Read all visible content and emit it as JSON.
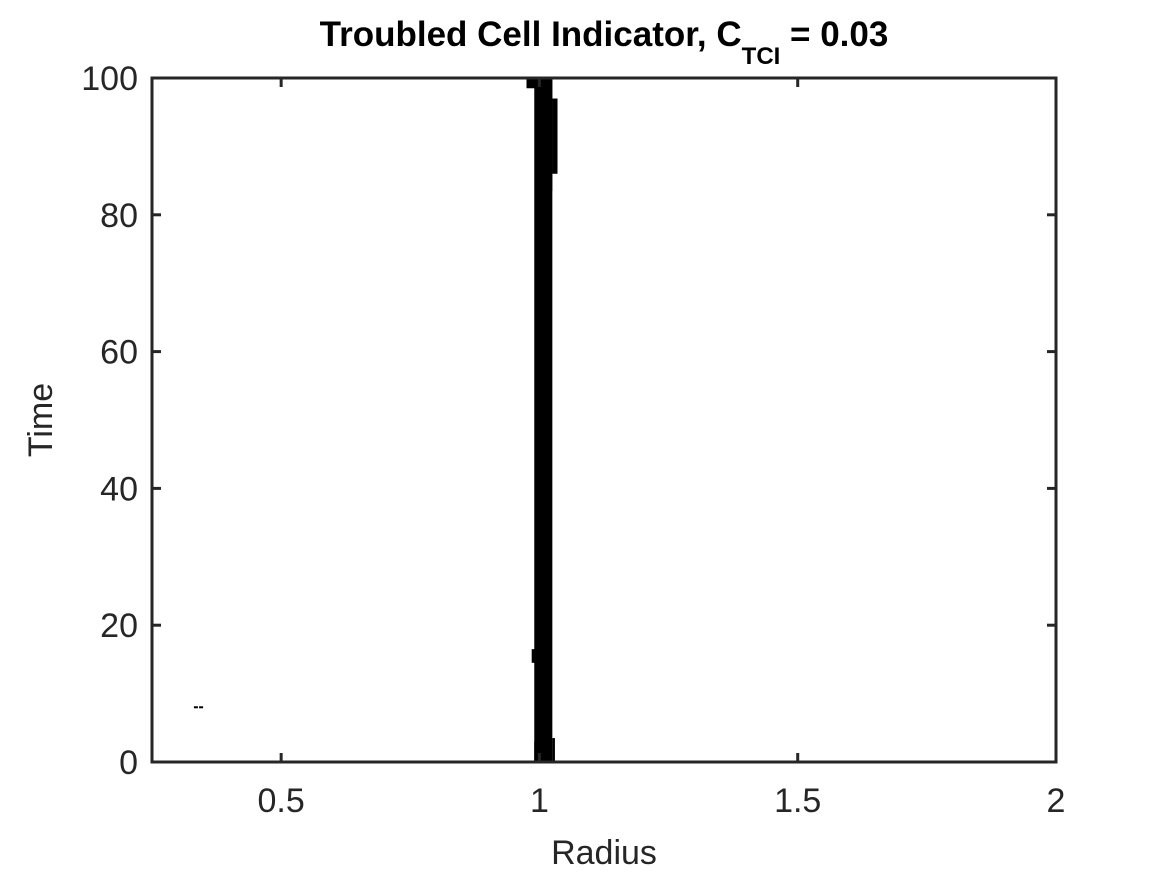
{
  "chart_data": {
    "type": "scatter",
    "title": {
      "prefix": "Troubled Cell Indicator, C",
      "subscript": "TCI",
      "suffix": " = 0.03"
    },
    "xlabel": "Radius",
    "ylabel": "Time",
    "xlim": [
      0.25,
      2
    ],
    "ylim": [
      0,
      100
    ],
    "xticks": [
      0.5,
      1,
      1.5,
      2
    ],
    "xtick_labels": [
      "0.5",
      "1",
      "1.5",
      "2"
    ],
    "yticks": [
      0,
      20,
      40,
      60,
      80,
      100
    ],
    "ytick_labels": [
      "0",
      "20",
      "40",
      "60",
      "80",
      "100"
    ],
    "grid": false,
    "marker_color": "#000000",
    "axis_color": "#262626",
    "series": [
      {
        "regions": [
          {
            "x": [
              0.99,
              1.025
            ],
            "y": [
              0,
              100
            ]
          },
          {
            "x": [
              1.0,
              1.025
            ],
            "y": [
              83.5,
              100
            ]
          },
          {
            "x": [
              0.985,
              1.0
            ],
            "y": [
              14.5,
              16.5
            ]
          },
          {
            "x": [
              0.99,
              1.0
            ],
            "y": [
              0,
              3
            ]
          },
          {
            "x": [
              1.025,
              1.03
            ],
            "y": [
              0,
              3.5
            ]
          },
          {
            "x": [
              0.975,
              0.995
            ],
            "y": [
              98.5,
              100
            ]
          },
          {
            "x": [
              1.025,
              1.035
            ],
            "y": [
              86,
              97
            ]
          }
        ],
        "points": [
          {
            "x": 0.335,
            "y": 8.0
          },
          {
            "x": 0.345,
            "y": 8.0
          }
        ]
      }
    ]
  }
}
